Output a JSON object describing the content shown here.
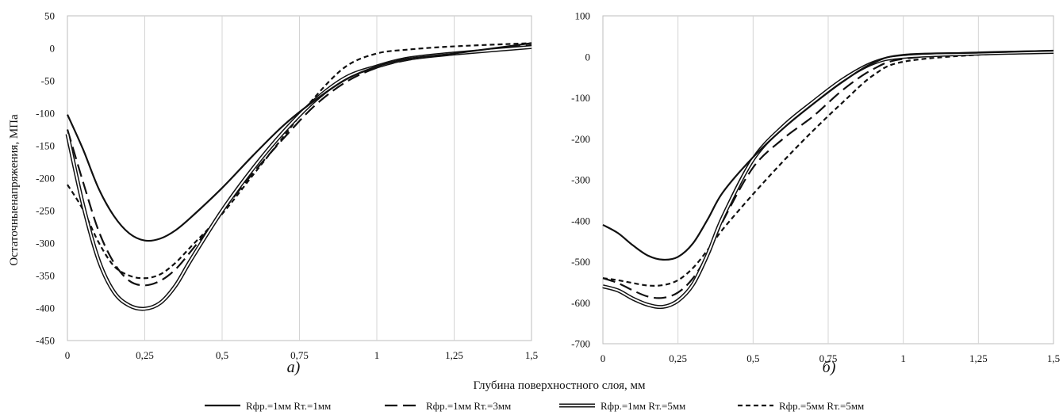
{
  "figure": {
    "ylabel": "Остаточныенапряжения, МПа",
    "xlabel": "Глубина поверхностного слоя, мм",
    "legend": [
      {
        "label": "Rфр.=1мм Rт.=1мм",
        "style": "solid"
      },
      {
        "label": "Rфр.=1мм Rт.=3мм",
        "style": "longdash"
      },
      {
        "label": "Rфр.=1мм Rт.=5мм",
        "style": "double"
      },
      {
        "label": "Rфр.=5мм Rт.=5мм",
        "style": "shortdash"
      }
    ]
  },
  "chart_data": [
    {
      "type": "line",
      "panel_label": "а)",
      "xlim": [
        0,
        1.5
      ],
      "ylim": [
        -450,
        50
      ],
      "x_ticks": [
        0,
        0.25,
        0.5,
        0.75,
        1,
        1.25,
        1.5
      ],
      "x_tick_labels": [
        "0",
        "0,25",
        "0,5",
        "0,75",
        "1",
        "1,25",
        "1,5"
      ],
      "y_ticks": [
        50,
        0,
        -50,
        -100,
        -150,
        -200,
        -250,
        -300,
        -350,
        -400,
        -450
      ],
      "y_tick_labels": [
        "50",
        "0",
        "-50",
        "-100",
        "-150",
        "-200",
        "-250",
        "-300",
        "-350",
        "-400",
        "-450"
      ],
      "grid": "vertical",
      "series": [
        {
          "name": "Rфр.=1мм Rт.=1мм",
          "style": "solid",
          "x": [
            0,
            0.05,
            0.1,
            0.15,
            0.2,
            0.25,
            0.3,
            0.35,
            0.4,
            0.5,
            0.6,
            0.7,
            0.8,
            0.9,
            1.0,
            1.1,
            1.25,
            1.5
          ],
          "y": [
            -102,
            -155,
            -215,
            -258,
            -285,
            -296,
            -293,
            -280,
            -260,
            -215,
            -165,
            -118,
            -80,
            -48,
            -28,
            -16,
            -8,
            8
          ]
        },
        {
          "name": "Rфр.=1мм Rт.=3мм",
          "style": "longdash",
          "x": [
            0,
            0.05,
            0.1,
            0.15,
            0.2,
            0.25,
            0.3,
            0.35,
            0.4,
            0.5,
            0.6,
            0.7,
            0.8,
            0.9,
            1.0,
            1.1,
            1.25,
            1.5
          ],
          "y": [
            -125,
            -205,
            -280,
            -330,
            -358,
            -365,
            -358,
            -340,
            -312,
            -252,
            -192,
            -138,
            -88,
            -52,
            -30,
            -18,
            -8,
            5
          ]
        },
        {
          "name": "Rфр.=1мм Rт.=5мм",
          "style": "double",
          "x": [
            0,
            0.05,
            0.1,
            0.15,
            0.2,
            0.25,
            0.3,
            0.35,
            0.4,
            0.5,
            0.6,
            0.7,
            0.8,
            0.9,
            1.0,
            1.1,
            1.25,
            1.5
          ],
          "y": [
            -132,
            -240,
            -325,
            -375,
            -396,
            -401,
            -392,
            -365,
            -325,
            -250,
            -185,
            -128,
            -80,
            -45,
            -28,
            -16,
            -8,
            2
          ]
        },
        {
          "name": "Rфр.=5мм Rт.=5мм",
          "style": "shortdash",
          "x": [
            0,
            0.05,
            0.1,
            0.15,
            0.2,
            0.25,
            0.3,
            0.35,
            0.4,
            0.5,
            0.6,
            0.7,
            0.8,
            0.9,
            1.0,
            1.1,
            1.25,
            1.5
          ],
          "y": [
            -210,
            -248,
            -298,
            -335,
            -350,
            -354,
            -348,
            -330,
            -305,
            -255,
            -195,
            -135,
            -75,
            -28,
            -8,
            -2,
            3,
            8
          ]
        }
      ]
    },
    {
      "type": "line",
      "panel_label": "б)",
      "xlim": [
        0,
        1.5
      ],
      "ylim": [
        -700,
        100
      ],
      "x_ticks": [
        0,
        0.25,
        0.5,
        0.75,
        1,
        1.25,
        1.5
      ],
      "x_tick_labels": [
        "0",
        "0,25",
        "0,5",
        "0,75",
        "1",
        "1,25",
        "1,5"
      ],
      "y_ticks": [
        100,
        0,
        -100,
        -200,
        -300,
        -400,
        -500,
        -600,
        -700
      ],
      "y_tick_labels": [
        "100",
        "0",
        "-100",
        "-200",
        "-300",
        "-400",
        "-500",
        "-600",
        "-700"
      ],
      "grid": "vertical",
      "series": [
        {
          "name": "Rфр.=1мм Rт.=1мм",
          "style": "solid",
          "x": [
            0,
            0.05,
            0.1,
            0.15,
            0.2,
            0.25,
            0.3,
            0.35,
            0.4,
            0.5,
            0.6,
            0.7,
            0.8,
            0.9,
            1.0,
            1.25,
            1.5
          ],
          "y": [
            -410,
            -430,
            -460,
            -485,
            -495,
            -488,
            -455,
            -395,
            -330,
            -245,
            -175,
            -115,
            -60,
            -15,
            5,
            10,
            15
          ]
        },
        {
          "name": "Rфр.=1мм Rт.=3мм",
          "style": "longdash",
          "x": [
            0,
            0.05,
            0.1,
            0.15,
            0.2,
            0.25,
            0.3,
            0.35,
            0.4,
            0.5,
            0.6,
            0.7,
            0.8,
            0.9,
            1.0,
            1.25,
            1.5
          ],
          "y": [
            -540,
            -552,
            -570,
            -585,
            -588,
            -575,
            -540,
            -480,
            -400,
            -270,
            -200,
            -145,
            -80,
            -30,
            -5,
            8,
            12
          ]
        },
        {
          "name": "Rфр.=1мм Rт.=5мм",
          "style": "double",
          "x": [
            0,
            0.05,
            0.1,
            0.15,
            0.2,
            0.25,
            0.3,
            0.35,
            0.4,
            0.5,
            0.6,
            0.7,
            0.8,
            0.9,
            1.0,
            1.25,
            1.5
          ],
          "y": [
            -560,
            -570,
            -590,
            -605,
            -610,
            -595,
            -555,
            -480,
            -390,
            -250,
            -170,
            -110,
            -55,
            -15,
            0,
            8,
            12
          ]
        },
        {
          "name": "Rфр.=5мм Rт.=5мм",
          "style": "shortdash",
          "x": [
            0,
            0.05,
            0.1,
            0.15,
            0.2,
            0.25,
            0.3,
            0.35,
            0.4,
            0.5,
            0.6,
            0.7,
            0.8,
            0.9,
            1.0,
            1.25,
            1.5
          ],
          "y": [
            -540,
            -545,
            -552,
            -558,
            -557,
            -545,
            -515,
            -470,
            -420,
            -335,
            -255,
            -180,
            -110,
            -45,
            -12,
            5,
            10
          ]
        }
      ]
    }
  ]
}
